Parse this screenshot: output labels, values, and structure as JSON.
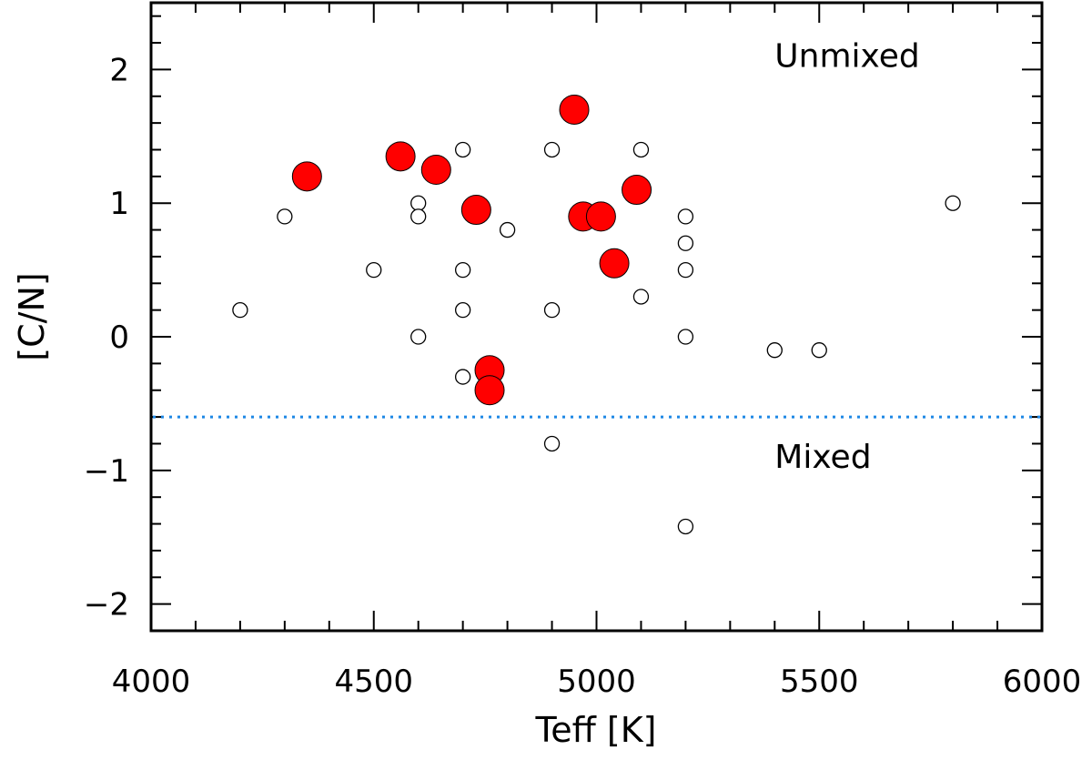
{
  "chart_data": {
    "type": "scatter",
    "xlabel": "Teff [K]",
    "ylabel": "[C/N]",
    "xlim": [
      4000,
      6000
    ],
    "ylim": [
      -2.2,
      2.5
    ],
    "x_ticks": [
      4000,
      4500,
      5000,
      5500,
      6000
    ],
    "y_ticks": [
      2,
      1,
      0,
      -1,
      -2
    ],
    "y_tick_labels": [
      "2",
      "1",
      "0",
      "−1",
      "−2"
    ],
    "grid": false,
    "reference_line": {
      "y": -0.6,
      "style": "dotted",
      "color": "#1e88e5"
    },
    "annotations": [
      {
        "text": "Unmixed",
        "x": 5400,
        "y": 2.1
      },
      {
        "text": "Mixed",
        "x": 5400,
        "y": -0.9
      }
    ],
    "series": [
      {
        "marker": "open-circle",
        "color": "#000000",
        "points": [
          [
            4200,
            0.2
          ],
          [
            4300,
            0.9
          ],
          [
            4500,
            0.5
          ],
          [
            4600,
            1.0
          ],
          [
            4600,
            0.9
          ],
          [
            4600,
            0.0
          ],
          [
            4700,
            1.4
          ],
          [
            4700,
            0.5
          ],
          [
            4700,
            0.2
          ],
          [
            4700,
            -0.3
          ],
          [
            4800,
            0.8
          ],
          [
            4900,
            1.4
          ],
          [
            4900,
            0.2
          ],
          [
            4900,
            -0.8
          ],
          [
            5100,
            1.4
          ],
          [
            5100,
            0.3
          ],
          [
            5200,
            0.9
          ],
          [
            5200,
            0.7
          ],
          [
            5200,
            0.5
          ],
          [
            5200,
            0.0
          ],
          [
            5200,
            -1.42
          ],
          [
            5400,
            -0.1
          ],
          [
            5500,
            -0.1
          ],
          [
            5800,
            1.0
          ]
        ]
      },
      {
        "marker": "filled-circle",
        "color": "#ff0000",
        "points": [
          [
            4350,
            1.2
          ],
          [
            4560,
            1.35
          ],
          [
            4640,
            1.25
          ],
          [
            4730,
            0.95
          ],
          [
            4760,
            -0.25
          ],
          [
            4760,
            -0.4
          ],
          [
            4950,
            1.7
          ],
          [
            4970,
            0.9
          ],
          [
            5010,
            0.9
          ],
          [
            5040,
            0.55
          ],
          [
            5090,
            1.1
          ]
        ]
      }
    ]
  }
}
